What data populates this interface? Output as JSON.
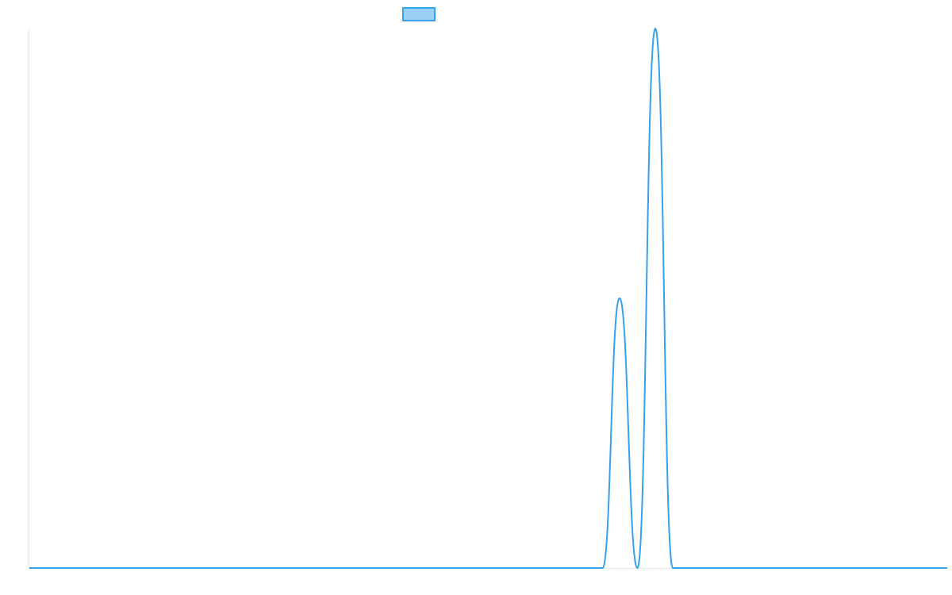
{
  "chart_data": {
    "type": "line",
    "title": "",
    "xlabel": "",
    "ylabel": "",
    "legend": {
      "placement": "top-center",
      "entries": [
        {
          "name": "",
          "color": "#36a2eb",
          "fill": "#9ad0f5"
        }
      ]
    },
    "grid": false,
    "xlim": [
      0,
      1
    ],
    "ylim": [
      0,
      1
    ],
    "series": [
      {
        "name": "",
        "color": "#36a2eb",
        "points": [
          {
            "x": 0.0,
            "y": 0.0
          },
          {
            "x": 0.6245,
            "y": 0.0
          },
          {
            "x": 0.643,
            "y": 0.5
          },
          {
            "x": 0.6625,
            "y": 0.0
          },
          {
            "x": 0.682,
            "y": 1.0
          },
          {
            "x": 0.701,
            "y": 0.0
          },
          {
            "x": 1.0,
            "y": 0.0
          }
        ]
      }
    ]
  }
}
